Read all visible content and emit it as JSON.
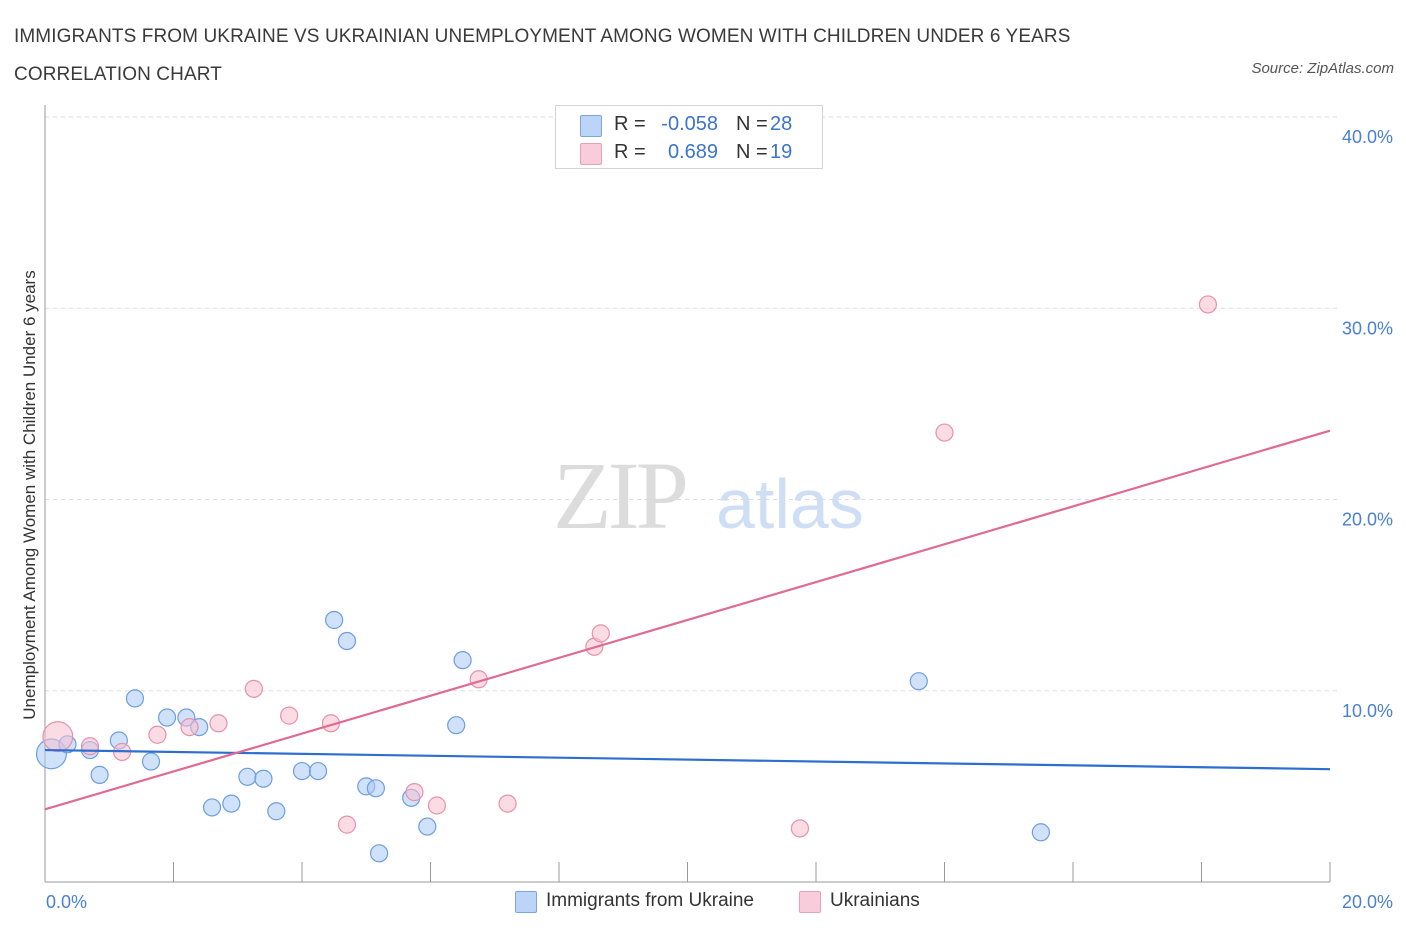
{
  "title": "IMMIGRANTS FROM UKRAINE VS UKRAINIAN UNEMPLOYMENT AMONG WOMEN WITH CHILDREN UNDER 6 YEARS CORRELATION CHART",
  "source": "Source: ZipAtlas.com",
  "watermark": {
    "zip": "ZIP",
    "atlas": "atlas"
  },
  "colors": {
    "blue_fill": "#a9c8f5",
    "blue_stroke": "#6e9ee0",
    "blue_line": "#2d6fcf",
    "pink_fill": "#f7bfd0",
    "pink_stroke": "#e891ac",
    "pink_line": "#e06a93",
    "tick_text": "#4a80d0",
    "grid": "#dcdcdc"
  },
  "legend_stats": [
    {
      "series": "Immigrants from Ukraine",
      "r_label": "R =",
      "r_value": "-0.058",
      "n_label": "N =",
      "n_value": "28"
    },
    {
      "series": "Ukrainians",
      "r_label": "R =",
      "r_value": "0.689",
      "n_label": "N =",
      "n_value": "19"
    }
  ],
  "chart_data": {
    "type": "scatter",
    "title": "IMMIGRANTS FROM UKRAINE VS UKRAINIAN UNEMPLOYMENT AMONG WOMEN WITH CHILDREN UNDER 6 YEARS CORRELATION CHART",
    "xlabel": "",
    "ylabel": "Unemployment Among Women with Children Under 6 years",
    "xlim": [
      0,
      20
    ],
    "ylim": [
      0,
      40
    ],
    "x_tick_labels": [
      "0.0%",
      "20.0%"
    ],
    "y_ticks": [
      10,
      20,
      30,
      40
    ],
    "y_tick_labels": [
      "10.0%",
      "20.0%",
      "30.0%",
      "40.0%"
    ],
    "grid": true,
    "legend_position": "bottom-center",
    "series": [
      {
        "name": "Immigrants from Ukraine",
        "color": "#a9c8f5",
        "trend": {
          "x": [
            0,
            20
          ],
          "y": [
            6.9,
            5.9
          ]
        },
        "points": [
          {
            "x": 0.1,
            "y": 6.7,
            "size": 2
          },
          {
            "x": 0.35,
            "y": 7.2
          },
          {
            "x": 0.7,
            "y": 6.9
          },
          {
            "x": 0.85,
            "y": 5.6
          },
          {
            "x": 1.15,
            "y": 7.4
          },
          {
            "x": 1.4,
            "y": 9.6
          },
          {
            "x": 1.65,
            "y": 6.3
          },
          {
            "x": 1.9,
            "y": 8.6
          },
          {
            "x": 2.2,
            "y": 8.6
          },
          {
            "x": 2.4,
            "y": 8.1
          },
          {
            "x": 2.6,
            "y": 3.9
          },
          {
            "x": 2.9,
            "y": 4.1
          },
          {
            "x": 3.15,
            "y": 5.5
          },
          {
            "x": 3.4,
            "y": 5.4
          },
          {
            "x": 3.6,
            "y": 3.7
          },
          {
            "x": 4.0,
            "y": 5.8
          },
          {
            "x": 4.25,
            "y": 5.8
          },
          {
            "x": 4.5,
            "y": 13.7
          },
          {
            "x": 4.7,
            "y": 12.6
          },
          {
            "x": 5.0,
            "y": 5.0
          },
          {
            "x": 5.15,
            "y": 4.9
          },
          {
            "x": 5.2,
            "y": 1.5
          },
          {
            "x": 5.7,
            "y": 4.4
          },
          {
            "x": 5.95,
            "y": 2.9
          },
          {
            "x": 6.4,
            "y": 8.2
          },
          {
            "x": 6.5,
            "y": 11.6
          },
          {
            "x": 13.6,
            "y": 10.5
          },
          {
            "x": 15.5,
            "y": 2.6
          }
        ]
      },
      {
        "name": "Ukrainians",
        "color": "#f7bfd0",
        "trend": {
          "x": [
            0,
            20
          ],
          "y": [
            3.8,
            23.6
          ]
        },
        "points": [
          {
            "x": 0.2,
            "y": 7.6,
            "size": 2
          },
          {
            "x": 0.7,
            "y": 7.1
          },
          {
            "x": 1.2,
            "y": 6.8
          },
          {
            "x": 1.75,
            "y": 7.7
          },
          {
            "x": 2.25,
            "y": 8.1
          },
          {
            "x": 2.7,
            "y": 8.3
          },
          {
            "x": 3.25,
            "y": 10.1
          },
          {
            "x": 3.8,
            "y": 8.7
          },
          {
            "x": 4.45,
            "y": 8.3
          },
          {
            "x": 4.7,
            "y": 3.0
          },
          {
            "x": 5.75,
            "y": 4.7
          },
          {
            "x": 6.1,
            "y": 4.0
          },
          {
            "x": 6.75,
            "y": 10.6
          },
          {
            "x": 7.2,
            "y": 4.1
          },
          {
            "x": 8.55,
            "y": 12.3
          },
          {
            "x": 8.65,
            "y": 13.0
          },
          {
            "x": 11.75,
            "y": 2.8
          },
          {
            "x": 14.0,
            "y": 23.5
          },
          {
            "x": 18.1,
            "y": 30.2
          }
        ]
      }
    ]
  }
}
